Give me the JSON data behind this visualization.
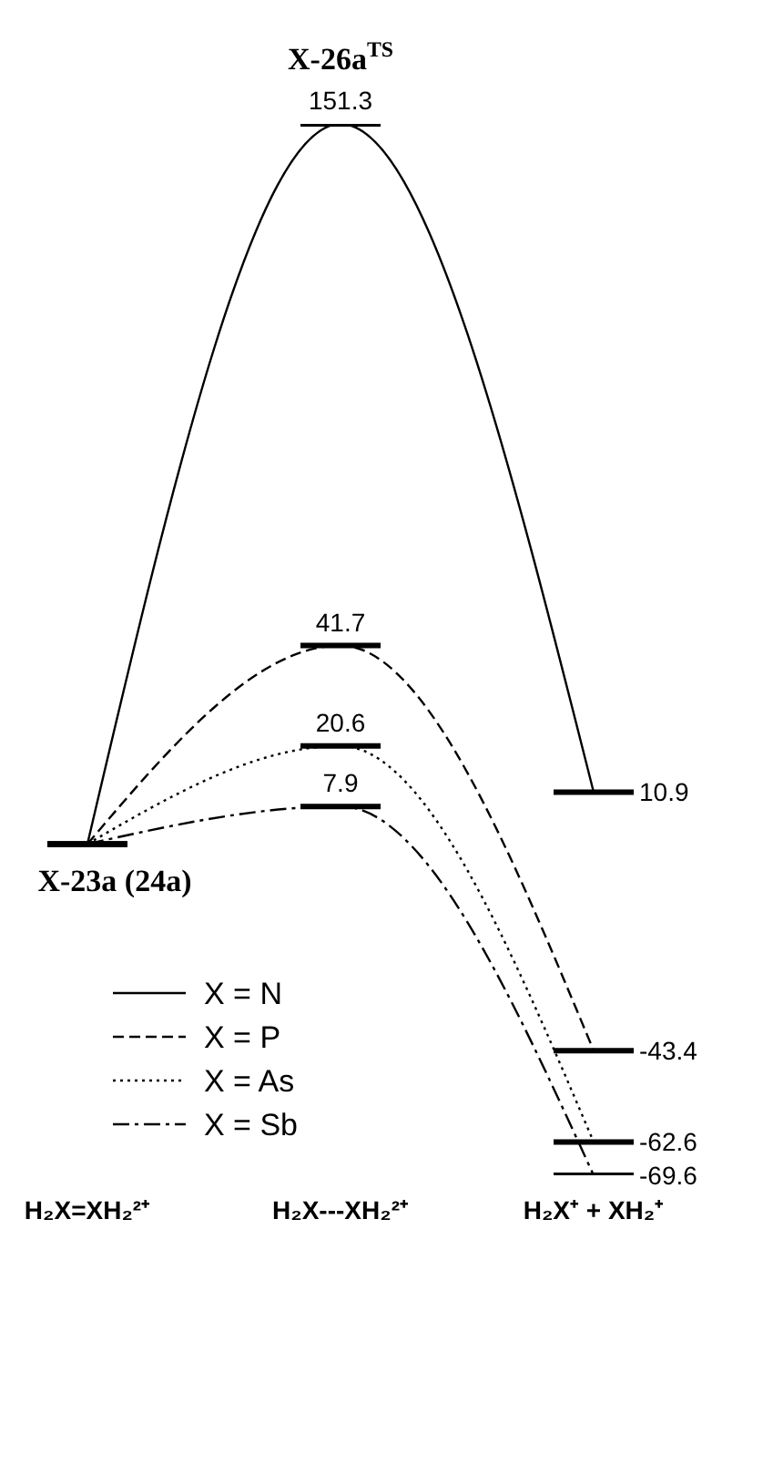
{
  "chart_data": {
    "type": "line",
    "categories": [
      "H₂X=XH₂²⁺",
      "H₂X---XH₂²⁺",
      "H₂X⁺ + XH₂⁺"
    ],
    "series": [
      {
        "name": "X = N",
        "color": "#000000",
        "line_style": "solid",
        "values": [
          0,
          151.3,
          10.9
        ],
        "value_labels": [
          null,
          "151.3",
          "10.9"
        ]
      },
      {
        "name": "X = P",
        "color": "#000000",
        "line_style": "dashed",
        "values": [
          0,
          41.7,
          -43.4
        ],
        "value_labels": [
          null,
          "41.7",
          "-43.4"
        ]
      },
      {
        "name": "X = As",
        "color": "#000000",
        "line_style": "dotted",
        "values": [
          0,
          20.6,
          -62.6
        ],
        "value_labels": [
          null,
          "20.6",
          "-62.6"
        ]
      },
      {
        "name": "X = Sb",
        "color": "#000000",
        "line_style": "dashdot",
        "values": [
          0,
          7.9,
          -69.6
        ],
        "value_labels": [
          null,
          "7.9",
          "-69.6"
        ]
      }
    ],
    "annotations": [
      {
        "text": "X-23a (24a)",
        "x": "H₂X=XH₂²⁺",
        "y": 0
      },
      {
        "text": "X-26a$^{TS}$",
        "x": "H₂X---XH₂²⁺",
        "y": 151.3
      }
    ],
    "legend": "bottom left",
    "grid": false,
    "marker": "none"
  }
}
